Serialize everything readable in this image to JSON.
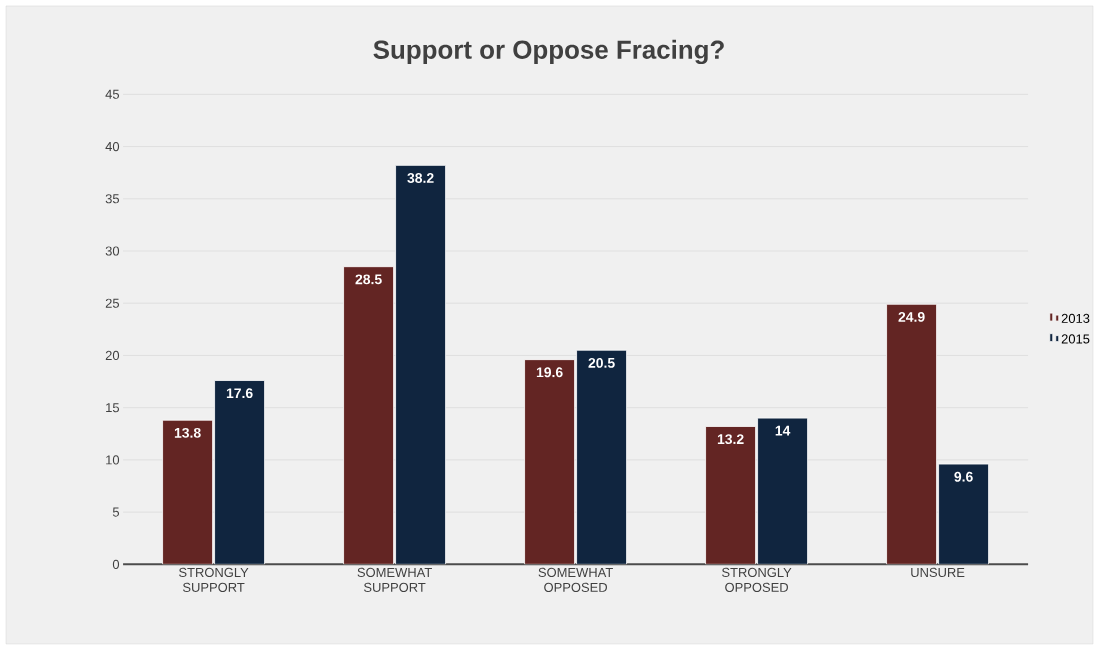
{
  "chart_data": {
    "type": "bar",
    "title": "Support or Oppose Fracing?",
    "categories": [
      "STRONGLY SUPPORT",
      "SOMEWHAT SUPPORT",
      "SOMEWHAT OPPOSED",
      "STRONGLY OPPOSED",
      "UNSURE"
    ],
    "series": [
      {
        "name": "2013",
        "color": "#632523",
        "values": [
          13.8,
          28.5,
          19.6,
          13.2,
          24.9
        ]
      },
      {
        "name": "2015",
        "color": "#10253f",
        "values": [
          17.6,
          38.2,
          20.5,
          14,
          9.6
        ]
      }
    ],
    "ylim": [
      0,
      45
    ],
    "yticks": [
      0,
      5,
      10,
      15,
      20,
      25,
      30,
      35,
      40,
      45
    ],
    "grid": "y",
    "legend": "right",
    "data_labels": true
  }
}
